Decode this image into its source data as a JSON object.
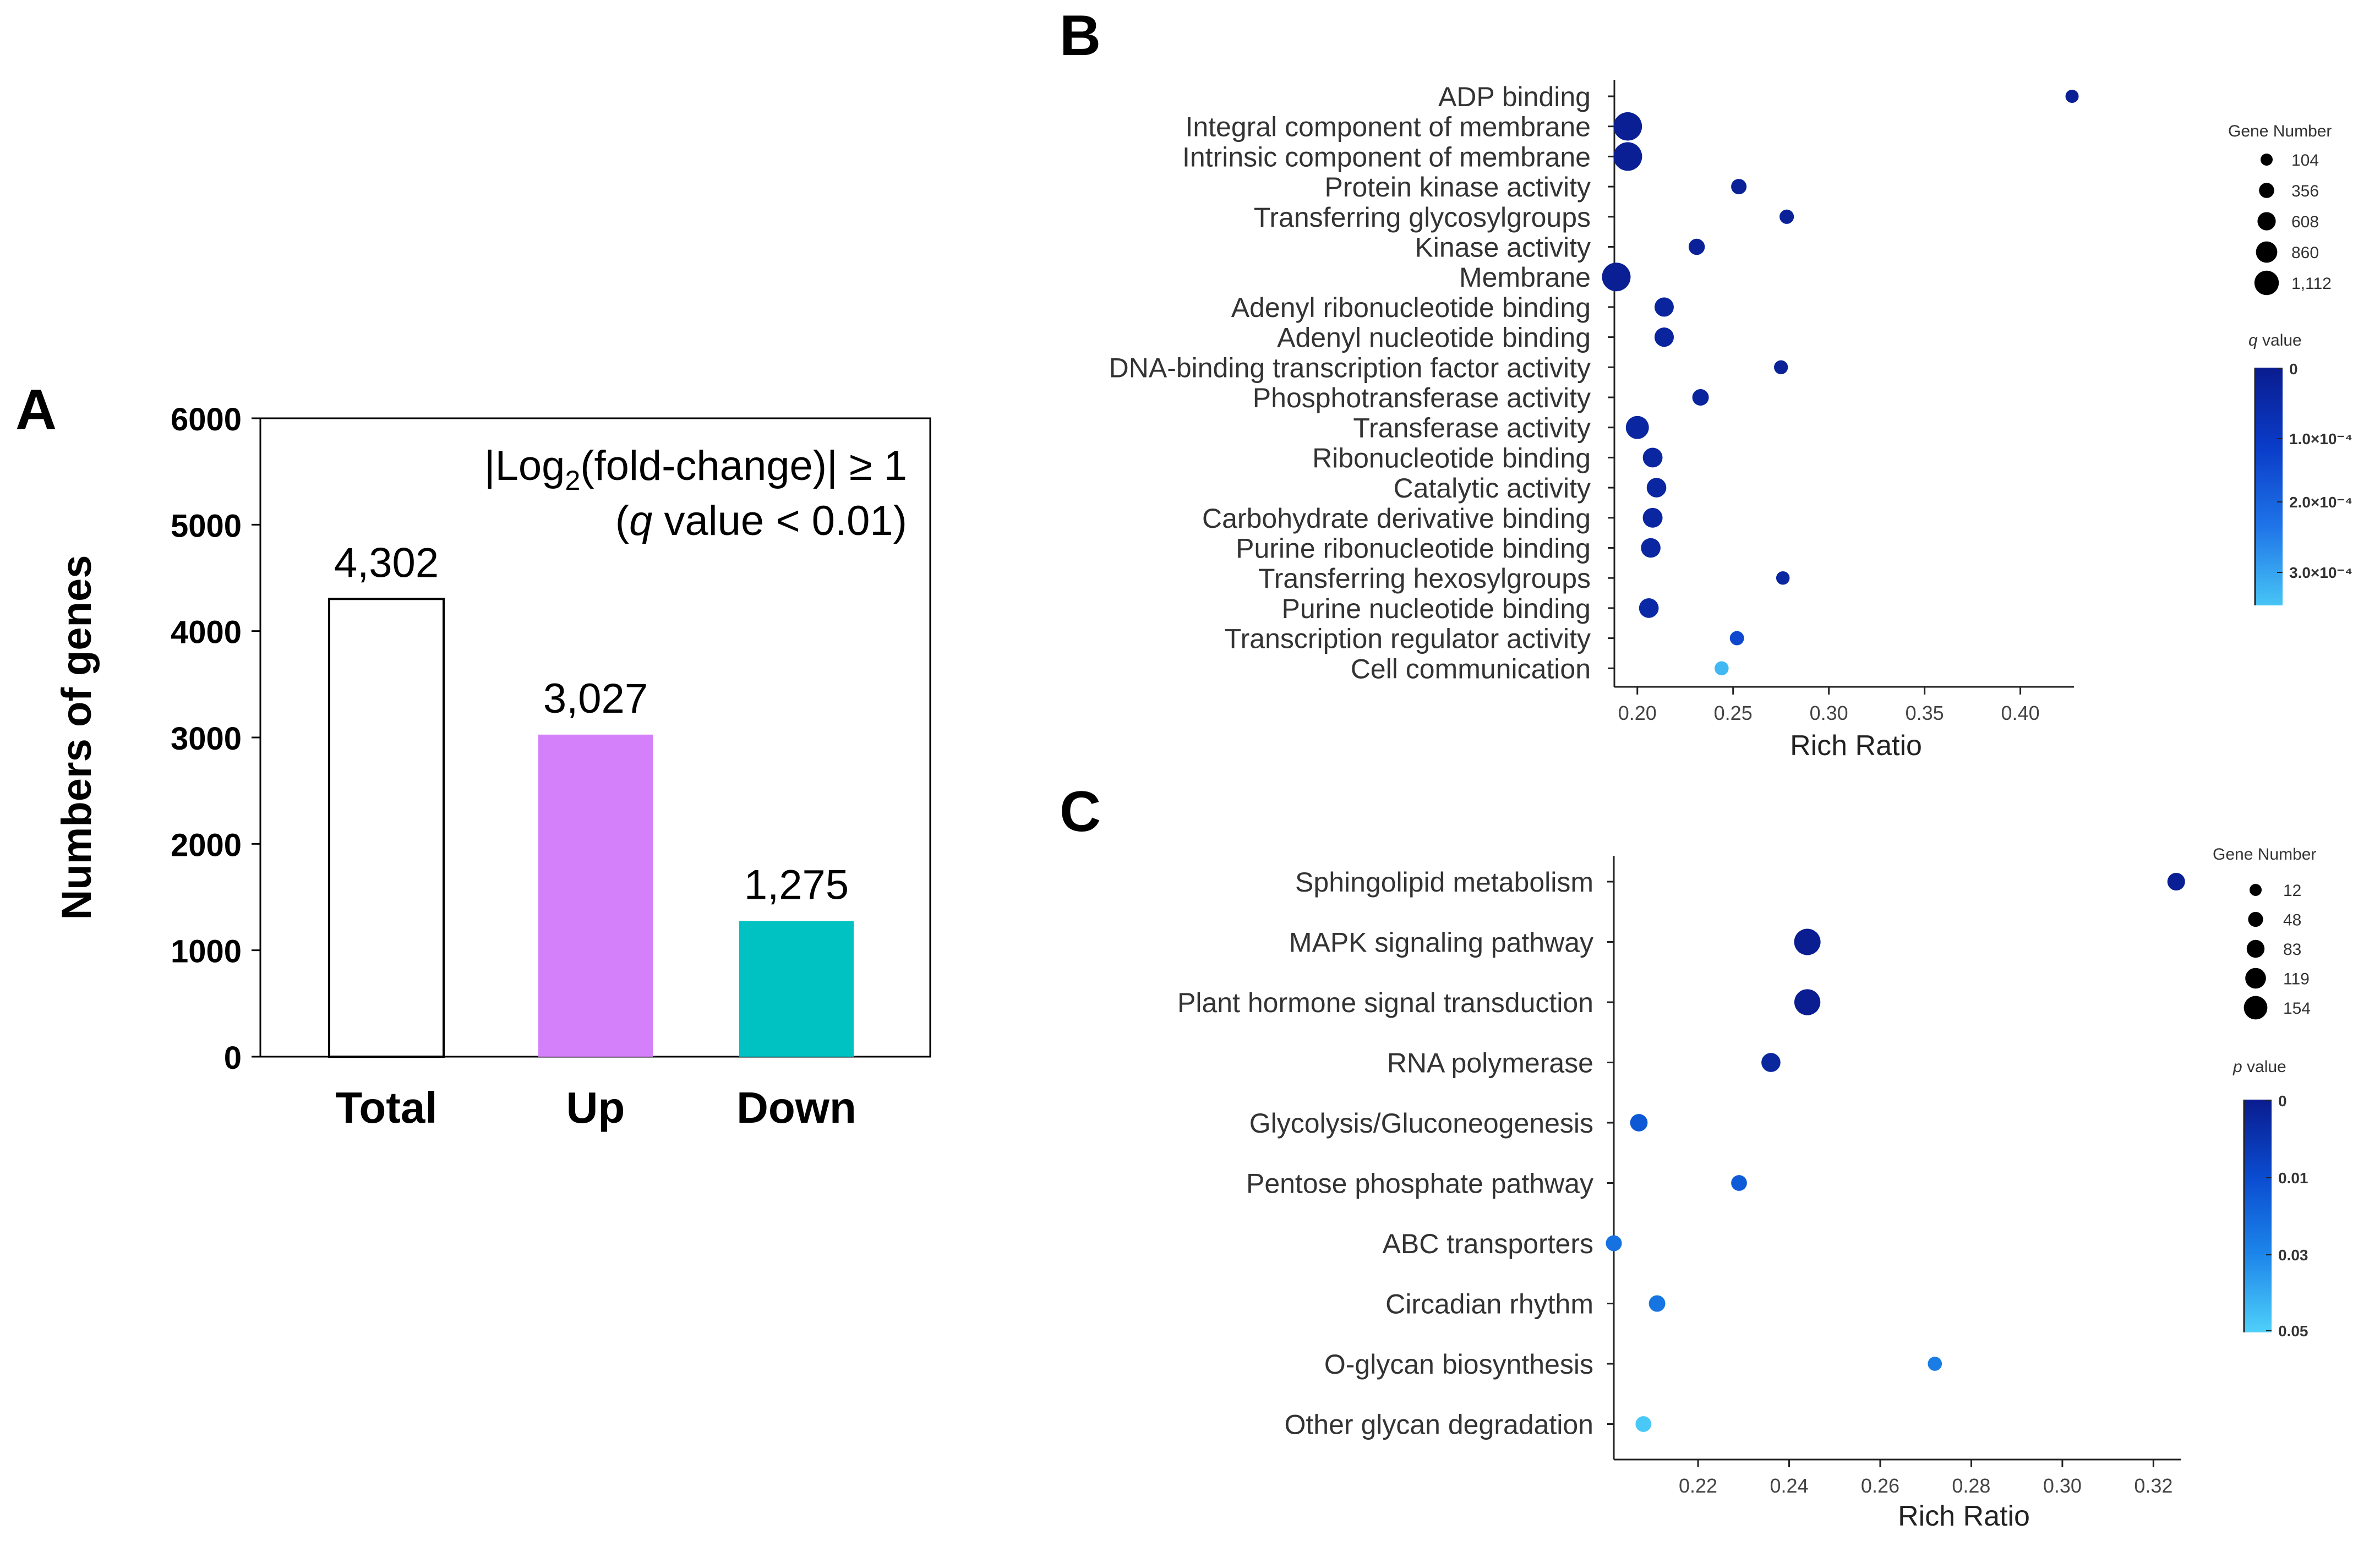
{
  "colors": {
    "total_fill": "#ffffff",
    "up_fill": "#d580fb",
    "down_fill": "#00c2c2",
    "q_scale": [
      "#0a1c8f",
      "#0a3cc8",
      "#1f74e8",
      "#47c4f5"
    ],
    "p_scale": [
      "#0a1c8f",
      "#0a4cd0",
      "#1d86ea",
      "#4fd0fa"
    ]
  },
  "chart_data": [
    {
      "panel": "A",
      "type": "bar",
      "title_line1_prefix": "|Log",
      "title_sub": "2",
      "title_line1_suffix": "(fold-change)| ≥ 1",
      "title_line2_q": "q",
      "title_line2_rest": " value < 0.01)",
      "title_line2_open": "(",
      "ylabel": "Numbers of genes",
      "xlabel": "",
      "ylim": [
        0,
        6000
      ],
      "yticks": [
        "0",
        "1000",
        "2000",
        "3000",
        "4000",
        "5000",
        "6000"
      ],
      "categories": [
        "Total",
        "Up",
        "Down"
      ],
      "values": [
        4302,
        3027,
        1275
      ],
      "value_labels": [
        "4,302",
        "3,027",
        "1,275"
      ]
    },
    {
      "panel": "B",
      "type": "scatter",
      "xlabel": "Rich Ratio",
      "xlim": [
        0.188,
        0.428
      ],
      "xticks": [
        "0.20",
        "0.25",
        "0.30",
        "0.35",
        "0.40"
      ],
      "xtick_values": [
        0.2,
        0.25,
        0.3,
        0.35,
        0.4
      ],
      "size_legend_title": "Gene Number",
      "size_legend": [
        "104",
        "356",
        "608",
        "860",
        "1,112"
      ],
      "color_legend_title": "q value",
      "color_ticks": [
        "0",
        "1.0×10⁻⁴",
        "2.0×10⁻⁴",
        "3.0×10⁻⁴"
      ],
      "color_range": [
        0,
        0.00037
      ],
      "points": [
        {
          "term": "ADP binding",
          "rich_ratio": 0.427,
          "gene_number": 104,
          "q": 1e-05
        },
        {
          "term": "Integral component of membrane",
          "rich_ratio": 0.195,
          "gene_number": 1100,
          "q": 1e-05
        },
        {
          "term": "Intrinsic component of membrane",
          "rich_ratio": 0.195,
          "gene_number": 1112,
          "q": 1e-05
        },
        {
          "term": "Protein kinase activity",
          "rich_ratio": 0.253,
          "gene_number": 250,
          "q": 2e-05
        },
        {
          "term": "Transferring glycosylgroups",
          "rich_ratio": 0.278,
          "gene_number": 180,
          "q": 2e-05
        },
        {
          "term": "Kinase activity",
          "rich_ratio": 0.231,
          "gene_number": 300,
          "q": 2e-05
        },
        {
          "term": "Membrane",
          "rich_ratio": 0.189,
          "gene_number": 1112,
          "q": 1e-05
        },
        {
          "term": "Adenyl ribonucleotide binding",
          "rich_ratio": 0.214,
          "gene_number": 500,
          "q": 3e-05
        },
        {
          "term": "Adenyl nucleotide binding",
          "rich_ratio": 0.214,
          "gene_number": 505,
          "q": 3e-05
        },
        {
          "term": "DNA-binding transcription factor activity",
          "rich_ratio": 0.275,
          "gene_number": 150,
          "q": 2e-05
        },
        {
          "term": "Phosphotransferase activity",
          "rich_ratio": 0.233,
          "gene_number": 320,
          "q": 3e-05
        },
        {
          "term": "Transferase activity",
          "rich_ratio": 0.2,
          "gene_number": 750,
          "q": 4e-05
        },
        {
          "term": "Ribonucleotide binding",
          "rich_ratio": 0.208,
          "gene_number": 530,
          "q": 4e-05
        },
        {
          "term": "Catalytic activity",
          "rich_ratio": 0.21,
          "gene_number": 520,
          "q": 4e-05
        },
        {
          "term": "Carbohydrate derivative binding",
          "rich_ratio": 0.208,
          "gene_number": 535,
          "q": 4e-05
        },
        {
          "term": "Purine ribonucleotide binding",
          "rich_ratio": 0.207,
          "gene_number": 520,
          "q": 4e-05
        },
        {
          "term": "Transferring hexosylgroups",
          "rich_ratio": 0.276,
          "gene_number": 120,
          "q": 4e-05
        },
        {
          "term": "Purine nucleotide binding",
          "rich_ratio": 0.206,
          "gene_number": 525,
          "q": 5e-05
        },
        {
          "term": "Transcription regulator activity",
          "rich_ratio": 0.252,
          "gene_number": 170,
          "q": 0.00015
        },
        {
          "term": "Cell communication",
          "rich_ratio": 0.244,
          "gene_number": 160,
          "q": 0.00035
        }
      ]
    },
    {
      "panel": "C",
      "type": "scatter",
      "xlabel": "Rich Ratio",
      "xlim": [
        0.2015,
        0.326
      ],
      "xticks": [
        "0.22",
        "0.24",
        "0.26",
        "0.28",
        "0.30",
        "0.32"
      ],
      "xtick_values": [
        0.22,
        0.24,
        0.26,
        0.28,
        0.3,
        0.32
      ],
      "size_legend_title": "Gene Number",
      "size_legend": [
        "12",
        "48",
        "83",
        "119",
        "154"
      ],
      "color_legend_title": "p value",
      "color_ticks": [
        "0",
        "0.01",
        "0.03",
        "0.05"
      ],
      "color_tick_values": [
        0,
        0.01,
        0.03,
        0.05
      ],
      "color_range": [
        0,
        0.05
      ],
      "points": [
        {
          "term": "Sphingolipid metabolism",
          "rich_ratio": 0.325,
          "gene_number": 60,
          "p": 0.0005
        },
        {
          "term": "MAPK signaling pathway",
          "rich_ratio": 0.244,
          "gene_number": 154,
          "p": 0.0003
        },
        {
          "term": "Plant hormone signal transduction",
          "rich_ratio": 0.244,
          "gene_number": 150,
          "p": 0.0003
        },
        {
          "term": "RNA polymerase",
          "rich_ratio": 0.236,
          "gene_number": 75,
          "p": 0.002
        },
        {
          "term": "Glycolysis/Gluconeogenesis",
          "rich_ratio": 0.207,
          "gene_number": 58,
          "p": 0.012
        },
        {
          "term": "Pentose phosphate pathway",
          "rich_ratio": 0.229,
          "gene_number": 40,
          "p": 0.013
        },
        {
          "term": "ABC transporters",
          "rich_ratio": 0.2015,
          "gene_number": 42,
          "p": 0.021
        },
        {
          "term": "Circadian rhythm",
          "rich_ratio": 0.211,
          "gene_number": 47,
          "p": 0.022
        },
        {
          "term": "O-glycan biosynthesis",
          "rich_ratio": 0.272,
          "gene_number": 22,
          "p": 0.025
        },
        {
          "term": "Other glycan degradation",
          "rich_ratio": 0.208,
          "gene_number": 40,
          "p": 0.048
        }
      ]
    }
  ],
  "panels": {
    "a": "A",
    "b": "B",
    "c": "C"
  }
}
